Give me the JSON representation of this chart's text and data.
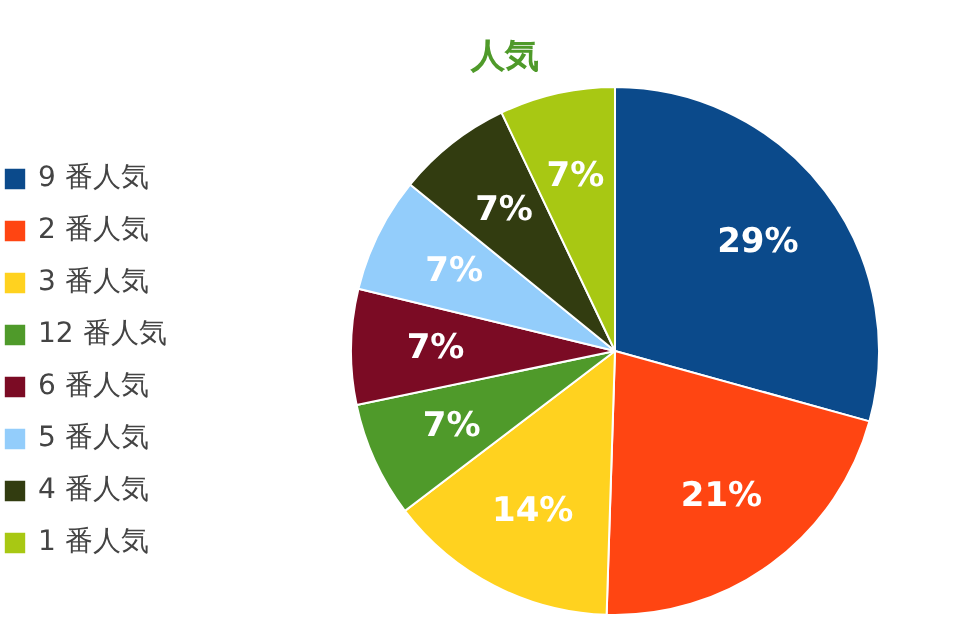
{
  "chart_data": {
    "type": "pie",
    "title": "人気",
    "categories": [
      "9 番人気",
      "2 番人気",
      "3 番人気",
      "12 番人気",
      "6 番人気",
      "5 番人気",
      "4 番人気",
      "1 番人気"
    ],
    "values": [
      29,
      21,
      14,
      7,
      7,
      7,
      7,
      7
    ],
    "colors": [
      "#0b4a8b",
      "#ff4512",
      "#ffd21f",
      "#4f9a2a",
      "#7b0b24",
      "#93cdfb",
      "#323c10",
      "#a8c813"
    ],
    "value_labels": [
      "29%",
      "21%",
      "14%",
      "7%",
      "7%",
      "7%",
      "7%",
      "7%"
    ],
    "legend": "left"
  }
}
